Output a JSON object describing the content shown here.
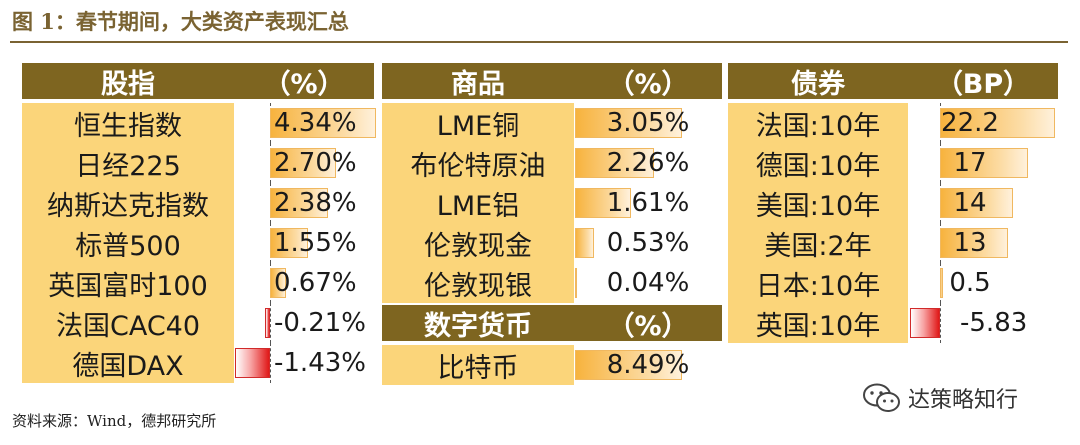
{
  "figure_title": "图 1：春节期间，大类资产表现汇总",
  "source": "资料来源：Wind，德邦研究所",
  "watermark": "达策略知行",
  "chart_data": {
    "type": "table",
    "blocks": [
      {
        "key": "equity",
        "header": "股指",
        "unit_header": "（%）",
        "rows": [
          {
            "name": "恒生指数",
            "value": 4.34,
            "label": "4.34%"
          },
          {
            "name": "日经225",
            "value": 2.7,
            "label": "2.70%"
          },
          {
            "name": "纳斯达克指数",
            "value": 2.38,
            "label": "2.38%"
          },
          {
            "name": "标普500",
            "value": 1.55,
            "label": "1.55%"
          },
          {
            "name": "英国富时100",
            "value": 0.67,
            "label": "0.67%"
          },
          {
            "name": "法国CAC40",
            "value": -0.21,
            "label": "-0.21%"
          },
          {
            "name": "德国DAX",
            "value": -1.43,
            "label": "-1.43%"
          }
        ]
      },
      {
        "key": "commodity",
        "header": "商品",
        "unit_header": "（%）",
        "rows": [
          {
            "name": "LME铜",
            "value": 3.05,
            "label": "3.05%"
          },
          {
            "name": "布伦特原油",
            "value": 2.26,
            "label": "2.26%"
          },
          {
            "name": "LME铝",
            "value": 1.61,
            "label": "1.61%"
          },
          {
            "name": "伦敦现金",
            "value": 0.53,
            "label": "0.53%"
          },
          {
            "name": "伦敦现银",
            "value": 0.04,
            "label": "0.04%"
          }
        ]
      },
      {
        "key": "crypto",
        "header": "数字货币",
        "unit_header": "（%）",
        "rows": [
          {
            "name": "比特币",
            "value": 8.49,
            "label": "8.49%"
          }
        ]
      },
      {
        "key": "bond",
        "header": "债券",
        "unit_header": "（BP）",
        "rows": [
          {
            "name": "法国:10年",
            "value": 22.2,
            "label": "22.2"
          },
          {
            "name": "德国:10年",
            "value": 17,
            "label": "17"
          },
          {
            "name": "美国:10年",
            "value": 14,
            "label": "14"
          },
          {
            "name": "美国:2年",
            "value": 13,
            "label": "13"
          },
          {
            "name": "日本:10年",
            "value": 0.5,
            "label": "0.5"
          },
          {
            "name": "英国:10年",
            "value": -5.83,
            "label": "-5.83"
          }
        ]
      }
    ]
  },
  "colors": {
    "header_bg": "#7e6520",
    "name_bg": "#fbd57a",
    "positive_bar": "#f7b33e",
    "negative_bar": "#e01818",
    "title_color": "#7a6332"
  }
}
